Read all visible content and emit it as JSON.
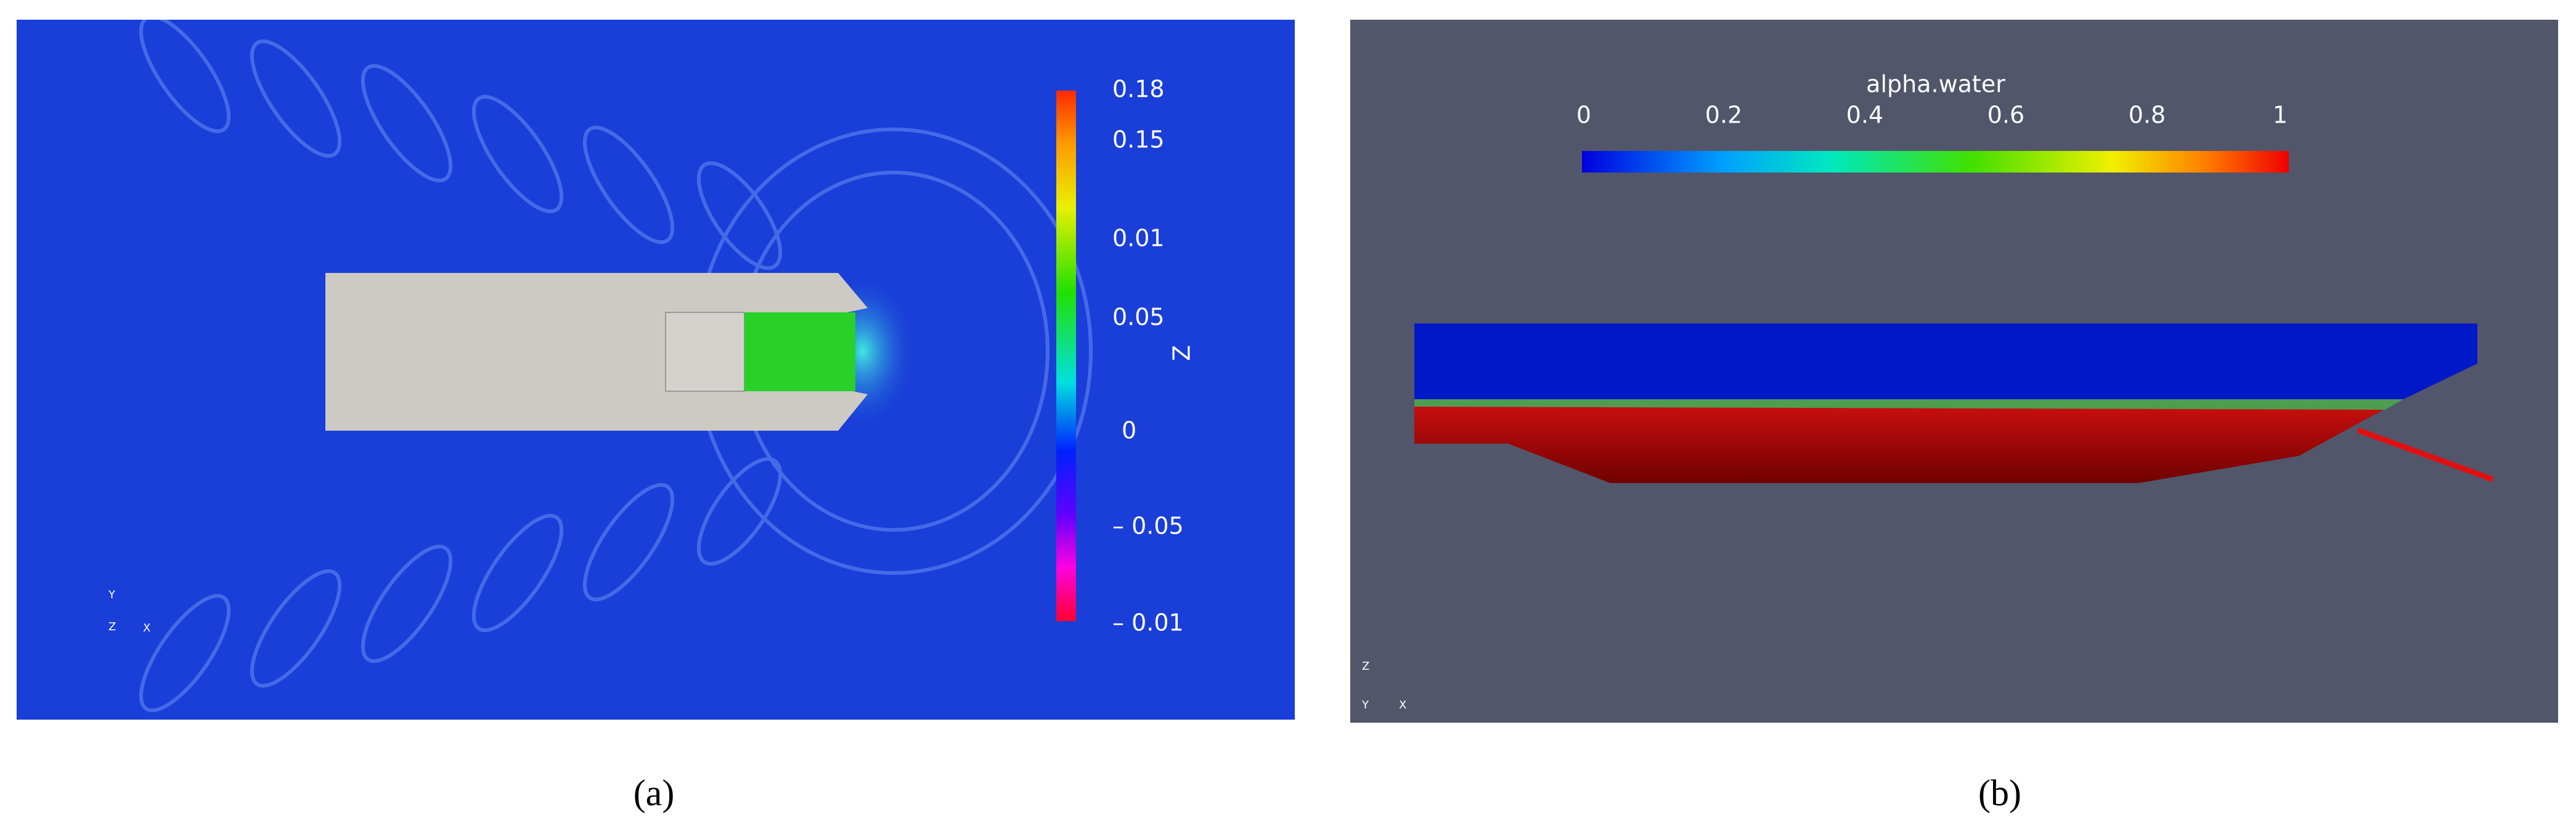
{
  "panel_a": {
    "colorbar_labels": [
      "0.18",
      "0.15",
      "0.01",
      "0.05",
      "0",
      "– 0.05",
      "– 0.01"
    ],
    "colorbar_title": "Z",
    "triad": [
      "Y",
      "Z",
      "X"
    ],
    "caption": "(a)"
  },
  "panel_b": {
    "colorbar_title": "alpha.water",
    "colorbar_labels": [
      "0",
      "0.2",
      "0.4",
      "0.6",
      "0.8",
      "1"
    ],
    "triad": [
      "Z",
      "Y",
      "X"
    ],
    "caption": "(b)"
  }
}
